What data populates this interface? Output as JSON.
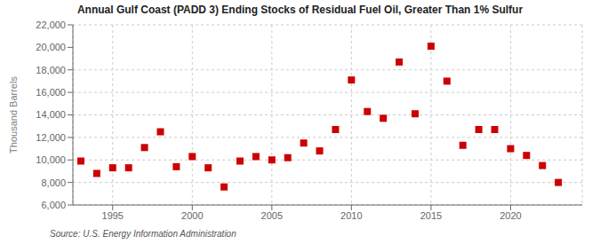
{
  "chart_data": {
    "type": "scatter",
    "title": "Annual Gulf Coast (PADD 3) Ending Stocks of Residual Fuel Oil, Greater Than 1% Sulfur",
    "ylabel": "Thousand Barrels",
    "annotations": [
      "Source: U.S. Energy Information Administration"
    ],
    "x": [
      1993,
      1994,
      1995,
      1996,
      1997,
      1998,
      1999,
      2000,
      2001,
      2002,
      2003,
      2004,
      2005,
      2006,
      2007,
      2008,
      2009,
      2010,
      2011,
      2012,
      2013,
      2014,
      2015,
      2016,
      2017,
      2018,
      2019,
      2020,
      2021,
      2022,
      2023
    ],
    "values": [
      9900,
      8800,
      9300,
      9300,
      11100,
      12500,
      9400,
      10300,
      9300,
      7600,
      9900,
      10300,
      10000,
      10200,
      11500,
      10800,
      12700,
      17100,
      14300,
      13700,
      18700,
      14100,
      20100,
      17000,
      11300,
      12700,
      12700,
      11000,
      10400,
      9500,
      8000
    ],
    "color": "#cc0000",
    "marker": "square",
    "xlim": [
      1992.5,
      2024.5
    ],
    "xticks": [
      1995,
      2000,
      2005,
      2010,
      2015,
      2020
    ],
    "ylim": [
      6000,
      22000
    ],
    "yticks": [
      {
        "value": 6000,
        "label": "6,000"
      },
      {
        "value": 8000,
        "label": "8,000"
      },
      {
        "value": 10000,
        "label": "10,000"
      },
      {
        "value": 12000,
        "label": "12,000"
      },
      {
        "value": 14000,
        "label": "14,000"
      },
      {
        "value": 16000,
        "label": "16,000"
      },
      {
        "value": 18000,
        "label": "18,000"
      },
      {
        "value": 20000,
        "label": "20,000"
      },
      {
        "value": 22000,
        "label": "22,000"
      }
    ],
    "grid": true
  }
}
